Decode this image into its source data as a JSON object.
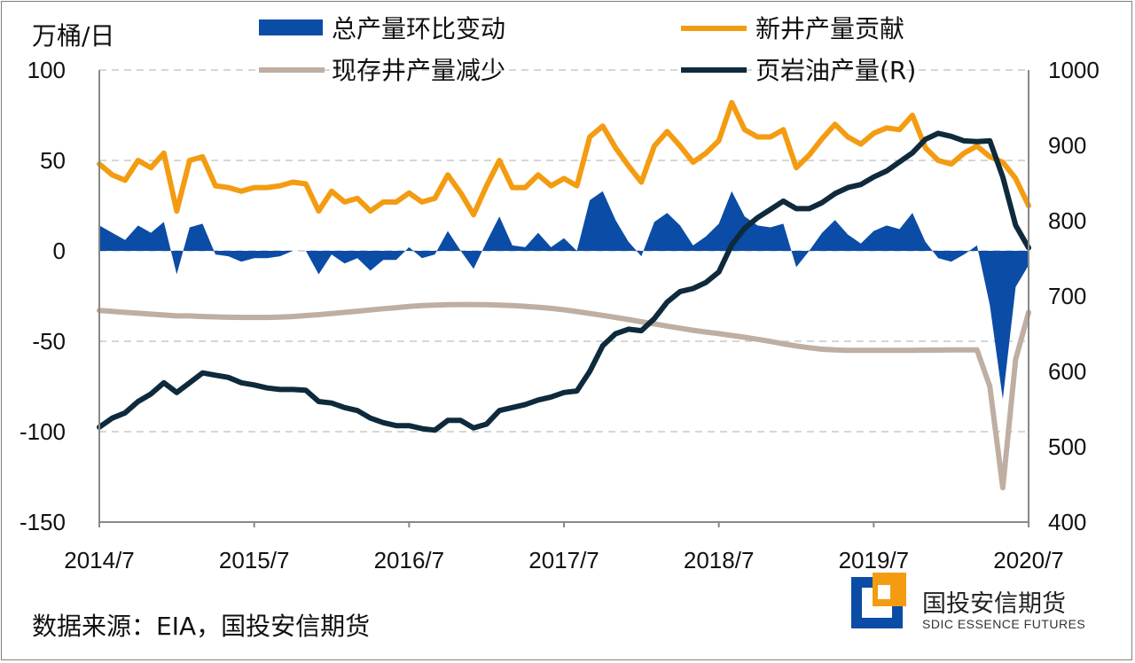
{
  "chart_data": {
    "type": "line",
    "y_left_unit": "万桶/日",
    "y_left_ticks": [
      "100",
      "50",
      "0",
      "-50",
      "-100",
      "-150"
    ],
    "y_left_lim": [
      -150,
      100
    ],
    "y_right_ticks": [
      "1000",
      "900",
      "800",
      "700",
      "600",
      "500",
      "400"
    ],
    "y_right_lim": [
      400,
      1000
    ],
    "x_tick_labels": [
      "2014/7",
      "2015/7",
      "2016/7",
      "2017/7",
      "2018/7",
      "2019/7",
      "2020/7"
    ],
    "x_months": [
      "2014/7",
      "2014/8",
      "2014/9",
      "2014/10",
      "2014/11",
      "2014/12",
      "2015/1",
      "2015/2",
      "2015/3",
      "2015/4",
      "2015/5",
      "2015/6",
      "2015/7",
      "2015/8",
      "2015/9",
      "2015/10",
      "2015/11",
      "2015/12",
      "2016/1",
      "2016/2",
      "2016/3",
      "2016/4",
      "2016/5",
      "2016/6",
      "2016/7",
      "2016/8",
      "2016/9",
      "2016/10",
      "2016/11",
      "2016/12",
      "2017/1",
      "2017/2",
      "2017/3",
      "2017/4",
      "2017/5",
      "2017/6",
      "2017/7",
      "2017/8",
      "2017/9",
      "2017/10",
      "2017/11",
      "2017/12",
      "2018/1",
      "2018/2",
      "2018/3",
      "2018/4",
      "2018/5",
      "2018/6",
      "2018/7",
      "2018/8",
      "2018/9",
      "2018/10",
      "2018/11",
      "2018/12",
      "2019/1",
      "2019/2",
      "2019/3",
      "2019/4",
      "2019/5",
      "2019/6",
      "2019/7",
      "2019/8",
      "2019/9",
      "2019/10",
      "2019/11",
      "2019/12",
      "2020/1",
      "2020/2",
      "2020/3",
      "2020/4",
      "2020/5",
      "2020/6",
      "2020/7"
    ],
    "series": [
      {
        "name": "总产量环比变动",
        "kind": "area",
        "axis": "left",
        "color": "#0b4ca6",
        "values": [
          14,
          10,
          6,
          14,
          10,
          16,
          -13,
          13,
          15,
          -2,
          -3,
          -6,
          -4,
          -4,
          -3,
          0,
          0,
          -13,
          -2,
          -7,
          -4,
          -11,
          -5,
          -5,
          2,
          -4,
          -2,
          11,
          0,
          -10,
          5,
          19,
          3,
          2,
          10,
          2,
          7,
          0,
          28,
          33,
          17,
          5,
          -3,
          16,
          21,
          14,
          3,
          8,
          15,
          33,
          19,
          14,
          13,
          15,
          -9,
          0,
          10,
          17,
          9,
          4,
          11,
          14,
          12,
          21,
          5,
          -4,
          -6,
          -2,
          3,
          -30,
          -82,
          -20,
          -8
        ]
      },
      {
        "name": "新井产量贡献",
        "kind": "line",
        "axis": "left",
        "color": "#f39c12",
        "values": [
          48,
          42,
          39,
          50,
          46,
          54,
          22,
          50,
          52,
          36,
          35,
          33,
          35,
          35,
          36,
          38,
          37,
          22,
          33,
          27,
          29,
          22,
          27,
          27,
          32,
          27,
          29,
          42,
          32,
          20,
          36,
          50,
          35,
          35,
          42,
          36,
          40,
          36,
          63,
          69,
          57,
          47,
          38,
          58,
          66,
          58,
          49,
          54,
          61,
          82,
          67,
          63,
          63,
          67,
          46,
          53,
          62,
          70,
          63,
          59,
          65,
          68,
          67,
          75,
          57,
          50,
          48,
          54,
          58,
          52,
          49,
          40,
          25
        ]
      },
      {
        "name": "现存井产量减少",
        "kind": "line",
        "axis": "left",
        "color": "#bfaea2",
        "values": [
          -33,
          -33.5,
          -34,
          -34.5,
          -35,
          -35.5,
          -36,
          -36,
          -36.3,
          -36.5,
          -36.7,
          -36.8,
          -36.8,
          -36.8,
          -36.6,
          -36.3,
          -35.8,
          -35.3,
          -34.7,
          -34,
          -33.4,
          -32.7,
          -32,
          -31.4,
          -30.8,
          -30.3,
          -30,
          -29.8,
          -29.7,
          -29.7,
          -29.8,
          -30,
          -30.3,
          -30.7,
          -31.2,
          -31.8,
          -32.6,
          -33.6,
          -34.6,
          -35.7,
          -36.8,
          -38,
          -39.2,
          -40.4,
          -41.6,
          -42.8,
          -43.9,
          -44.9,
          -45.8,
          -46.8,
          -47.8,
          -48.9,
          -50.1,
          -51.4,
          -52.6,
          -53.6,
          -54.4,
          -54.8,
          -55,
          -55,
          -55,
          -55,
          -55,
          -55,
          -54.9,
          -54.9,
          -54.8,
          -54.8,
          -54.8,
          -75,
          -131,
          -60,
          -34
        ]
      },
      {
        "name": "页岩油产量(R)",
        "kind": "line",
        "axis": "right",
        "color": "#0e2a3c",
        "values": [
          526,
          538,
          545,
          560,
          570,
          585,
          572,
          585,
          598,
          595,
          592,
          585,
          582,
          578,
          576,
          576,
          575,
          560,
          558,
          552,
          548,
          538,
          532,
          528,
          528,
          524,
          522,
          535,
          535,
          525,
          530,
          548,
          552,
          556,
          562,
          566,
          572,
          574,
          600,
          634,
          650,
          656,
          654,
          670,
          692,
          706,
          710,
          718,
          732,
          768,
          790,
          804,
          815,
          826,
          816,
          816,
          824,
          836,
          844,
          848,
          858,
          866,
          878,
          890,
          908,
          916,
          912,
          906,
          905,
          906,
          858,
          794,
          764
        ]
      }
    ]
  },
  "legend": [
    {
      "label": "总产量环比变动",
      "marker": "area",
      "color": "#0b4ca6"
    },
    {
      "label": "新井产量贡献",
      "marker": "line",
      "color": "#f39c12"
    },
    {
      "label": "现存井产量减少",
      "marker": "line",
      "color": "#bfaea2"
    },
    {
      "label": "页岩油产量(R)",
      "marker": "line",
      "color": "#0e2a3c"
    }
  ],
  "source_text": "数据来源：EIA，国投安信期货",
  "brand": {
    "name_cn": "国投安信期货",
    "name_en": "SDIC ESSENCE FUTURES",
    "colors": {
      "blue": "#0b4ca6",
      "orange": "#f39c12"
    }
  }
}
